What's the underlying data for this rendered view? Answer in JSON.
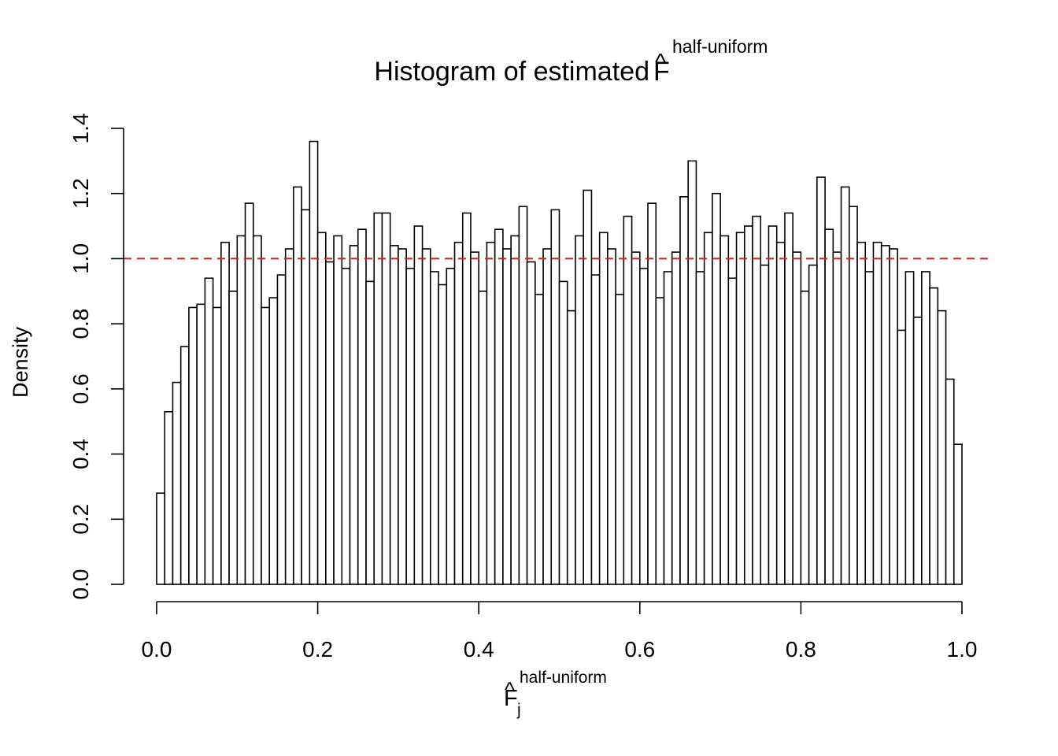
{
  "chart_data": {
    "type": "bar",
    "title": {
      "main": "Histogram of estimated",
      "symbol": "F",
      "hat": "^",
      "superscript": "half-uniform"
    },
    "xlabel": {
      "symbol": "F",
      "hat": "^",
      "superscript": "half-uniform",
      "subscript": "j"
    },
    "ylabel": "Density",
    "xlim": [
      0,
      1
    ],
    "ylim": [
      0,
      1.4
    ],
    "x_ticks": [
      0.0,
      0.2,
      0.4,
      0.6,
      0.8,
      1.0
    ],
    "x_tick_labels": [
      "0.0",
      "0.2",
      "0.4",
      "0.6",
      "0.8",
      "1.0"
    ],
    "y_ticks": [
      0.0,
      0.2,
      0.4,
      0.6,
      0.8,
      1.0,
      1.2,
      1.4
    ],
    "y_tick_labels": [
      "0.0",
      "0.2",
      "0.4",
      "0.6",
      "0.8",
      "1.0",
      "1.2",
      "1.4"
    ],
    "bin_width": 0.01,
    "bins_start": 0.0,
    "values": [
      0.28,
      0.53,
      0.62,
      0.73,
      0.85,
      0.86,
      0.94,
      0.85,
      1.05,
      0.9,
      1.07,
      1.17,
      1.07,
      0.85,
      0.88,
      0.95,
      1.03,
      1.22,
      1.15,
      1.36,
      1.08,
      0.99,
      1.07,
      0.97,
      1.04,
      1.09,
      0.93,
      1.14,
      1.14,
      1.04,
      1.03,
      0.97,
      1.1,
      1.03,
      0.96,
      0.92,
      0.97,
      1.05,
      1.14,
      1.02,
      0.9,
      1.05,
      1.09,
      1.03,
      1.07,
      1.16,
      0.99,
      0.89,
      1.03,
      1.15,
      0.93,
      0.84,
      1.07,
      1.21,
      0.95,
      1.08,
      1.03,
      0.89,
      1.13,
      1.02,
      0.97,
      1.17,
      0.88,
      0.96,
      1.02,
      1.19,
      1.3,
      0.96,
      1.08,
      1.2,
      1.07,
      0.94,
      1.08,
      1.1,
      1.13,
      0.98,
      1.1,
      1.05,
      1.14,
      1.02,
      0.9,
      0.98,
      1.25,
      1.09,
      1.02,
      1.22,
      1.16,
      1.05,
      0.96,
      1.05,
      1.04,
      1.03,
      0.78,
      0.96,
      0.82,
      0.96,
      0.91,
      0.84,
      0.63,
      0.43
    ],
    "reference_line": {
      "y": 1.0,
      "color": "#e41a1c",
      "style": "dashed"
    },
    "bar_fill": "#ffffff",
    "bar_stroke": "#000000",
    "grid": false,
    "legend": "none"
  }
}
